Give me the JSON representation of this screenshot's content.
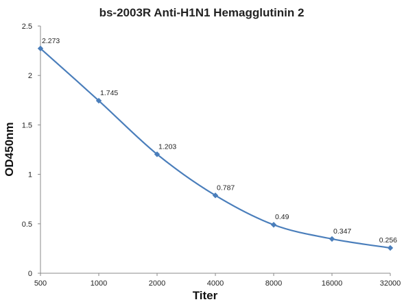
{
  "chart_data": {
    "type": "line",
    "title": "bs-2003R Anti-H1N1 Hemagglutinin 2",
    "xlabel": "Titer",
    "ylabel": "OD450nm",
    "categories": [
      "500",
      "1000",
      "2000",
      "4000",
      "8000",
      "16000",
      "32000"
    ],
    "series": [
      {
        "values": [
          2.273,
          1.745,
          1.203,
          0.787,
          0.49,
          0.347,
          0.256
        ]
      }
    ],
    "data_labels": [
      "2.273",
      "1.745",
      "1.203",
      "0.787",
      "0.49",
      "0.347",
      "0.256"
    ],
    "ylim": [
      0,
      2.5
    ],
    "yticks": [
      "0",
      "0.5",
      "1",
      "1.5",
      "2",
      "2.5"
    ],
    "grid": false,
    "legend": "none",
    "line_color": "#4a7ebb"
  }
}
